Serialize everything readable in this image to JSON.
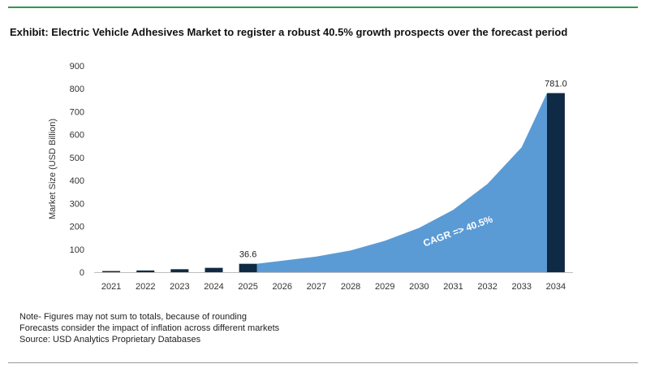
{
  "title": "Exhibit: Electric Vehicle Adhesives Market to register a robust 40.5% growth prospects over the forecast period",
  "notes": [
    "Note- Figures may not sum to totals, because of rounding",
    "Forecasts consider the impact of inflation across different markets",
    "Source: USD Analytics Proprietary Databases"
  ],
  "colors": {
    "historic_bar": "#0f2a45",
    "forecast_area": "#5b9bd5",
    "title_rule": "#2e9a4a"
  },
  "chart_data": {
    "type": "bar",
    "title": "Exhibit: Electric Vehicle Adhesives Market to register a robust 40.5% growth prospects over the forecast period",
    "xlabel": "",
    "ylabel": "Market Size (USD Billion)",
    "ylim": [
      0,
      900
    ],
    "yticks": [
      0,
      100,
      200,
      300,
      400,
      500,
      600,
      700,
      800,
      900
    ],
    "grid": false,
    "categories": [
      "2021",
      "2022",
      "2023",
      "2024",
      "2025",
      "2026",
      "2027",
      "2028",
      "2029",
      "2030",
      "2031",
      "2032",
      "2033",
      "2034"
    ],
    "series": [
      {
        "values": [
          5,
          7.5,
          13,
          19,
          36.6,
          50,
          68,
          95,
          137,
          193,
          272,
          385,
          545,
          781
        ]
      }
    ],
    "bars_shown": [
      "2021",
      "2022",
      "2023",
      "2024",
      "2025",
      "2034"
    ],
    "data_labels": [
      {
        "category": "2025",
        "text": "36.6"
      },
      {
        "category": "2034",
        "text": "781.0"
      }
    ],
    "annotation": "CAGR => 40.5%"
  }
}
